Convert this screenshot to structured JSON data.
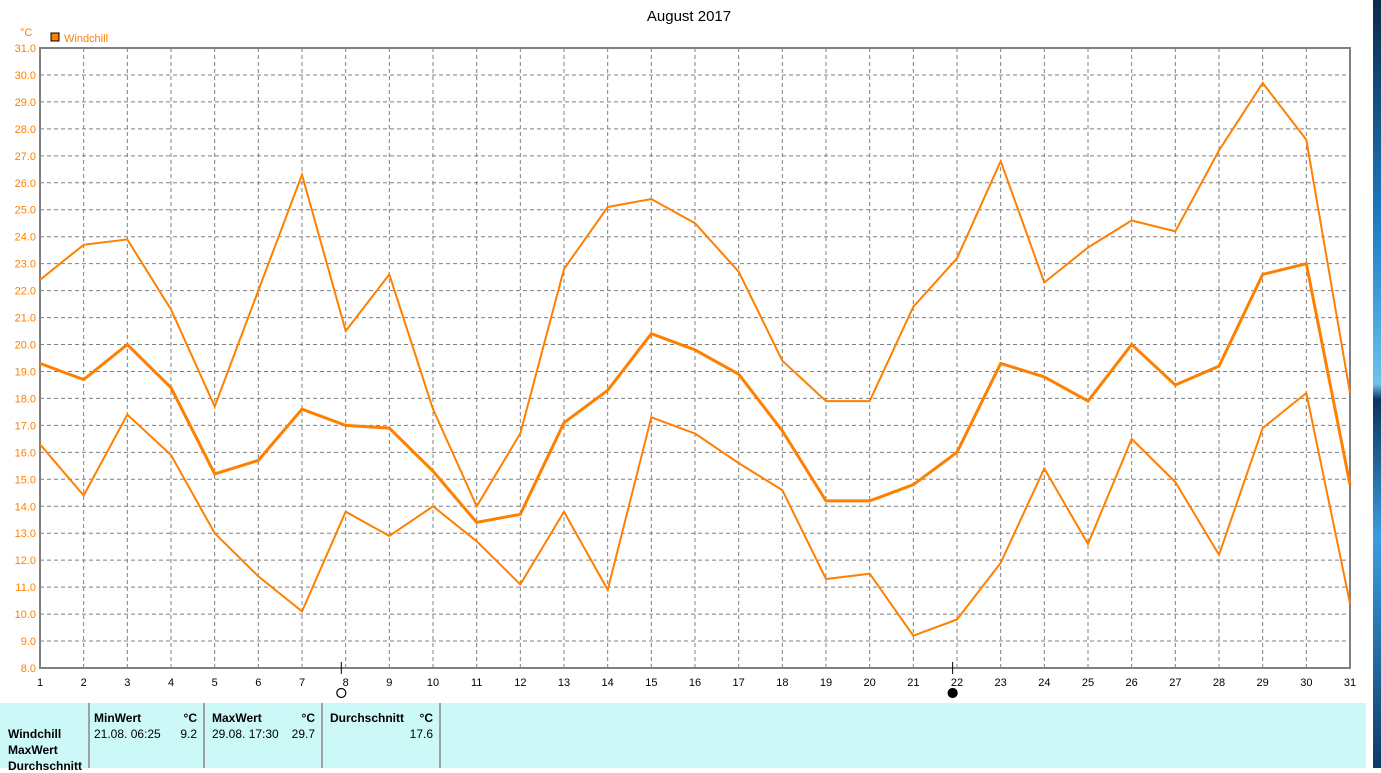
{
  "chart_data": {
    "type": "line",
    "title": "August 2017",
    "ylabel": "°C",
    "legend": [
      {
        "name": "Windchill",
        "color": "#ff8000"
      }
    ],
    "legend_placement": "top-left",
    "ylim": [
      8.0,
      31.0
    ],
    "yticks": [
      "8.0",
      "9.0",
      "10.0",
      "11.0",
      "12.0",
      "13.0",
      "14.0",
      "15.0",
      "16.0",
      "17.0",
      "18.0",
      "19.0",
      "20.0",
      "21.0",
      "22.0",
      "23.0",
      "24.0",
      "25.0",
      "26.0",
      "27.0",
      "28.0",
      "29.0",
      "30.0",
      "31.0"
    ],
    "x": [
      1,
      2,
      3,
      4,
      5,
      6,
      7,
      8,
      9,
      10,
      11,
      12,
      13,
      14,
      15,
      16,
      17,
      18,
      19,
      20,
      21,
      22,
      23,
      24,
      25,
      26,
      27,
      28,
      29,
      30,
      31
    ],
    "grid": true,
    "series": [
      {
        "values": [
          22.4,
          23.7,
          23.9,
          21.3,
          17.7,
          22.0,
          26.3,
          20.5,
          22.6,
          17.6,
          14.0,
          16.7,
          22.8,
          25.1,
          25.4,
          24.5,
          22.7,
          19.4,
          17.9,
          17.9,
          21.4,
          23.2,
          26.8,
          22.3,
          23.6,
          24.6,
          24.2,
          27.2,
          29.7,
          27.6,
          18.2
        ]
      },
      {
        "values": [
          19.3,
          18.7,
          20.0,
          18.4,
          15.2,
          15.7,
          17.6,
          17.0,
          16.9,
          15.3,
          13.4,
          13.7,
          17.1,
          18.3,
          20.4,
          19.8,
          18.9,
          16.8,
          14.2,
          14.2,
          14.8,
          16.0,
          19.3,
          18.8,
          17.9,
          20.0,
          18.5,
          19.2,
          22.6,
          23.0,
          14.8
        ]
      },
      {
        "values": [
          16.3,
          14.4,
          17.4,
          15.9,
          13.0,
          11.4,
          10.1,
          13.8,
          12.9,
          14.0,
          12.7,
          11.1,
          13.8,
          10.9,
          17.3,
          16.7,
          15.6,
          14.6,
          11.3,
          11.5,
          9.2,
          9.8,
          11.9,
          15.4,
          12.6,
          16.5,
          14.9,
          12.2,
          16.9,
          18.2,
          10.4
        ]
      }
    ],
    "moon_markers": [
      {
        "day": 7.9,
        "phase": "full-moon"
      },
      {
        "day": 21.9,
        "phase": "new-moon"
      }
    ],
    "colors": {
      "line": "#ff8000",
      "axis": "#808080",
      "grid": "#808080",
      "text": "#ff8000"
    }
  },
  "table": {
    "row_labels": [
      "Windchill",
      "MaxWert",
      "Durchschnitt"
    ],
    "min": {
      "header": "MinWert",
      "unit": "°C",
      "date": "21.08.  06:25",
      "value": "9.2"
    },
    "max": {
      "header": "MaxWert",
      "unit": "°C",
      "date": "29.08.  17:30",
      "value": "29.7"
    },
    "avg": {
      "header": "Durchschnitt",
      "unit": "°C",
      "value": "17.6"
    }
  }
}
